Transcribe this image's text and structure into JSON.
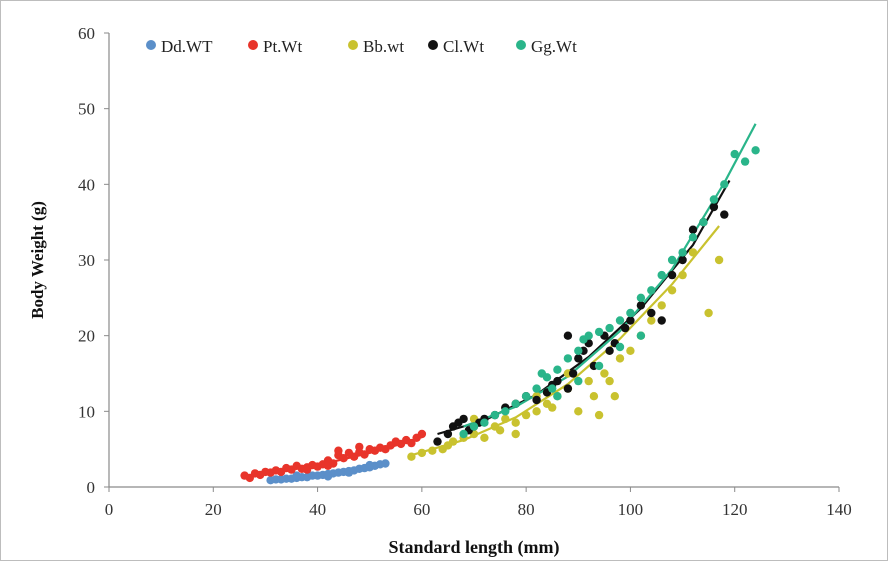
{
  "chart_data": {
    "type": "scatter",
    "title": "",
    "xlabel": "Standard length (mm)",
    "ylabel": "Body Weight (g)",
    "xlim": [
      0,
      140
    ],
    "ylim": [
      0,
      60
    ],
    "xticks": [
      "0",
      "20",
      "40",
      "60",
      "80",
      "100",
      "120",
      "140"
    ],
    "yticks": [
      "0",
      "10",
      "20",
      "30",
      "40",
      "50",
      "60"
    ],
    "grid": false,
    "legend": "top-left",
    "series": [
      {
        "name": "Dd.WT",
        "color": "#5b8fc9",
        "points": [
          [
            31,
            0.9
          ],
          [
            32,
            1.0
          ],
          [
            33,
            1.0
          ],
          [
            34,
            1.1
          ],
          [
            35,
            1.1
          ],
          [
            36,
            1.2
          ],
          [
            37,
            1.3
          ],
          [
            38,
            1.3
          ],
          [
            39,
            1.5
          ],
          [
            40,
            1.5
          ],
          [
            41,
            1.6
          ],
          [
            42,
            1.7
          ],
          [
            43,
            1.8
          ],
          [
            44,
            1.9
          ],
          [
            45,
            2.0
          ],
          [
            46,
            2.1
          ],
          [
            47,
            2.2
          ],
          [
            48,
            2.4
          ],
          [
            49,
            2.5
          ],
          [
            50,
            2.6
          ],
          [
            51,
            2.8
          ],
          [
            52,
            3.0
          ],
          [
            53,
            3.1
          ],
          [
            36,
            1.5
          ],
          [
            42,
            1.4
          ],
          [
            46,
            1.9
          ],
          [
            50,
            2.9
          ]
        ],
        "trend": [
          [
            31,
            0.9
          ],
          [
            36,
            1.2
          ],
          [
            41,
            1.6
          ],
          [
            46,
            2.1
          ],
          [
            50,
            2.6
          ],
          [
            53,
            3.0
          ]
        ]
      },
      {
        "name": "Pt.Wt",
        "color": "#e8342a",
        "points": [
          [
            26,
            1.5
          ],
          [
            27,
            1.2
          ],
          [
            28,
            1.8
          ],
          [
            29,
            1.6
          ],
          [
            30,
            2.0
          ],
          [
            31,
            1.9
          ],
          [
            32,
            2.2
          ],
          [
            33,
            2.0
          ],
          [
            34,
            2.5
          ],
          [
            35,
            2.3
          ],
          [
            36,
            2.8
          ],
          [
            37,
            2.4
          ],
          [
            38,
            2.6
          ],
          [
            39,
            2.9
          ],
          [
            40,
            2.7
          ],
          [
            41,
            3.0
          ],
          [
            42,
            3.5
          ],
          [
            43,
            3.1
          ],
          [
            44,
            4.2
          ],
          [
            45,
            3.8
          ],
          [
            46,
            4.5
          ],
          [
            47,
            4.0
          ],
          [
            48,
            4.6
          ],
          [
            49,
            4.3
          ],
          [
            50,
            5.0
          ],
          [
            51,
            4.8
          ],
          [
            52,
            5.2
          ],
          [
            53,
            5.0
          ],
          [
            54,
            5.5
          ],
          [
            55,
            6.0
          ],
          [
            56,
            5.7
          ],
          [
            57,
            6.2
          ],
          [
            58,
            5.8
          ],
          [
            59,
            6.5
          ],
          [
            60,
            7.0
          ],
          [
            44,
            4.8
          ],
          [
            42,
            2.8
          ],
          [
            38,
            2.3
          ],
          [
            48,
            5.3
          ]
        ],
        "trend": [
          [
            26,
            1.4
          ],
          [
            34,
            2.2
          ],
          [
            42,
            3.2
          ],
          [
            50,
            4.5
          ],
          [
            56,
            5.7
          ],
          [
            60,
            6.6
          ]
        ]
      },
      {
        "name": "Bb.wt",
        "color": "#c9c22f",
        "points": [
          [
            58,
            4.0
          ],
          [
            60,
            4.5
          ],
          [
            62,
            4.8
          ],
          [
            64,
            5.0
          ],
          [
            65,
            5.5
          ],
          [
            66,
            6.0
          ],
          [
            68,
            6.5
          ],
          [
            70,
            7.0
          ],
          [
            72,
            6.5
          ],
          [
            74,
            8.0
          ],
          [
            75,
            7.5
          ],
          [
            76,
            9.0
          ],
          [
            78,
            8.5
          ],
          [
            80,
            9.5
          ],
          [
            82,
            10.0
          ],
          [
            84,
            11.0
          ],
          [
            85,
            10.5
          ],
          [
            86,
            12.0
          ],
          [
            88,
            13.0
          ],
          [
            90,
            10.0
          ],
          [
            92,
            14.0
          ],
          [
            93,
            12.0
          ],
          [
            94,
            9.5
          ],
          [
            95,
            15.0
          ],
          [
            96,
            14.0
          ],
          [
            97,
            12.0
          ],
          [
            98,
            17.0
          ],
          [
            100,
            18.0
          ],
          [
            102,
            20.0
          ],
          [
            104,
            22.0
          ],
          [
            106,
            24.0
          ],
          [
            108,
            26.0
          ],
          [
            110,
            28.0
          ],
          [
            112,
            31.0
          ],
          [
            115,
            23.0
          ],
          [
            117,
            30.0
          ],
          [
            70,
            9.0
          ],
          [
            78,
            7.0
          ],
          [
            82,
            12.0
          ],
          [
            88,
            15.0
          ]
        ],
        "trend": [
          [
            58,
            4.2
          ],
          [
            68,
            6.2
          ],
          [
            78,
            9.2
          ],
          [
            88,
            13.6
          ],
          [
            98,
            19.6
          ],
          [
            108,
            26.8
          ],
          [
            117,
            34.5
          ]
        ]
      },
      {
        "name": "Cl.Wt",
        "color": "#111111",
        "points": [
          [
            63,
            6.0
          ],
          [
            65,
            7.0
          ],
          [
            66,
            8.0
          ],
          [
            67,
            8.5
          ],
          [
            68,
            9.0
          ],
          [
            70,
            8.0
          ],
          [
            72,
            9.0
          ],
          [
            74,
            9.5
          ],
          [
            76,
            10.5
          ],
          [
            78,
            11.0
          ],
          [
            80,
            12.0
          ],
          [
            82,
            11.5
          ],
          [
            84,
            12.5
          ],
          [
            86,
            14.0
          ],
          [
            88,
            13.0
          ],
          [
            89,
            15.0
          ],
          [
            90,
            17.0
          ],
          [
            91,
            18.0
          ],
          [
            92,
            19.0
          ],
          [
            93,
            16.0
          ],
          [
            95,
            20.0
          ],
          [
            97,
            19.0
          ],
          [
            99,
            21.0
          ],
          [
            100,
            22.0
          ],
          [
            102,
            24.0
          ],
          [
            104,
            23.0
          ],
          [
            106,
            22.0
          ],
          [
            108,
            28.0
          ],
          [
            110,
            30.0
          ],
          [
            112,
            34.0
          ],
          [
            114,
            35.0
          ],
          [
            116,
            37.0
          ],
          [
            118,
            36.0
          ],
          [
            69,
            7.5
          ],
          [
            71,
            8.5
          ],
          [
            85,
            13.5
          ],
          [
            88,
            20.0
          ],
          [
            96,
            18.0
          ]
        ],
        "trend": [
          [
            63,
            7.0
          ],
          [
            72,
            8.8
          ],
          [
            82,
            12.2
          ],
          [
            92,
            17.2
          ],
          [
            102,
            23.6
          ],
          [
            112,
            32.0
          ],
          [
            119,
            40.5
          ]
        ]
      },
      {
        "name": "Gg.Wt",
        "color": "#2ab58a",
        "points": [
          [
            68,
            7.0
          ],
          [
            70,
            8.0
          ],
          [
            72,
            8.5
          ],
          [
            74,
            9.5
          ],
          [
            76,
            10.0
          ],
          [
            78,
            11.0
          ],
          [
            80,
            12.0
          ],
          [
            82,
            13.0
          ],
          [
            83,
            15.0
          ],
          [
            84,
            14.5
          ],
          [
            85,
            13.0
          ],
          [
            86,
            15.5
          ],
          [
            88,
            17.0
          ],
          [
            90,
            18.0
          ],
          [
            91,
            19.5
          ],
          [
            92,
            20.0
          ],
          [
            94,
            20.5
          ],
          [
            96,
            21.0
          ],
          [
            98,
            22.0
          ],
          [
            100,
            23.0
          ],
          [
            102,
            25.0
          ],
          [
            104,
            26.0
          ],
          [
            106,
            28.0
          ],
          [
            108,
            30.0
          ],
          [
            110,
            31.0
          ],
          [
            112,
            33.0
          ],
          [
            114,
            35.0
          ],
          [
            116,
            38.0
          ],
          [
            118,
            40.0
          ],
          [
            120,
            44.0
          ],
          [
            122,
            43.0
          ],
          [
            124,
            44.5
          ],
          [
            86,
            12.0
          ],
          [
            90,
            14.0
          ],
          [
            94,
            16.0
          ],
          [
            98,
            18.5
          ],
          [
            102,
            20.0
          ]
        ],
        "trend": [
          [
            68,
            8.0
          ],
          [
            78,
            10.6
          ],
          [
            88,
            14.6
          ],
          [
            98,
            20.6
          ],
          [
            108,
            28.8
          ],
          [
            118,
            40.2
          ],
          [
            124,
            48.0
          ]
        ]
      }
    ]
  }
}
